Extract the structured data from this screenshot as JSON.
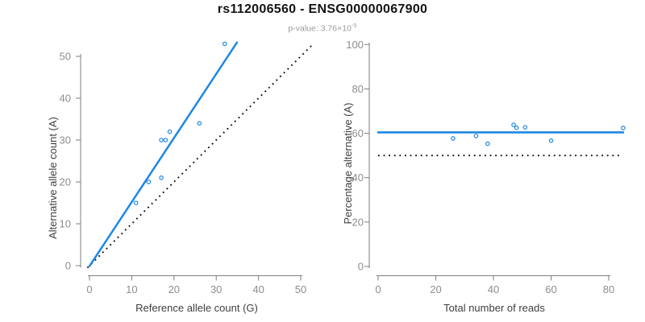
{
  "header": {
    "title": "rs112006560 - ENSG00000067900",
    "subtitle_prefix": "p-value: ",
    "p_value_body": "3.76×10",
    "p_value_exponent": "-5"
  },
  "colors": {
    "accent_blue": "#1E87E5",
    "axis_line_gray": "#7D7D7D",
    "tick_label_gray": "#8D8D8D",
    "axis_title_gray": "#3F3F3F",
    "dotted_line_black": "#0A0A0A",
    "title_black": "#141414",
    "subtitle_gray": "#9B9B9B",
    "background": "#FFFFFF"
  },
  "chart_data": [
    {
      "type": "scatter",
      "panel": "left",
      "xlabel": "Reference allele count (G)",
      "ylabel": "Alternative allele count (A)",
      "xlim": [
        0,
        50
      ],
      "ylim": [
        0,
        50
      ],
      "xticks": [
        0,
        10,
        20,
        30,
        40,
        50
      ],
      "yticks": [
        0,
        10,
        20,
        30,
        40,
        50
      ],
      "grid": false,
      "points": [
        [
          11,
          15
        ],
        [
          14,
          20
        ],
        [
          17,
          21
        ],
        [
          17,
          30
        ],
        [
          18,
          30
        ],
        [
          19,
          32
        ],
        [
          26,
          34
        ],
        [
          32,
          53
        ]
      ],
      "regression_line": {
        "style": "solid",
        "color": "accent_blue",
        "slope": 1.53,
        "intercept": 0,
        "x1": 0,
        "y1": -0.1,
        "x2": 34.9,
        "y2": 53.3
      },
      "identity_line": {
        "style": "dotted",
        "color": "dotted_line_black",
        "slope": 1,
        "intercept": 0,
        "x1": -0.5,
        "x2": 52.8
      }
    },
    {
      "type": "scatter",
      "panel": "right",
      "xlabel": "Total number of reads",
      "ylabel": "Percentage alternative (A)",
      "xlim": [
        0,
        85
      ],
      "ylim": [
        0,
        100
      ],
      "xticks": [
        0,
        20,
        40,
        60,
        80
      ],
      "yticks": [
        0,
        20,
        40,
        60,
        80,
        100
      ],
      "grid": false,
      "points": [
        [
          26,
          57.7
        ],
        [
          34,
          58.8
        ],
        [
          38,
          55.3
        ],
        [
          47,
          63.8
        ],
        [
          48,
          62.5
        ],
        [
          51,
          62.7
        ],
        [
          60,
          56.7
        ],
        [
          85,
          62.4
        ]
      ],
      "mean_line": {
        "style": "solid",
        "color": "accent_blue",
        "y": 60.4,
        "x1": 0,
        "x2": 85
      },
      "reference_line": {
        "style": "dotted",
        "color": "dotted_line_black",
        "y": 50,
        "x1": 0,
        "x2": 83.6
      }
    }
  ]
}
